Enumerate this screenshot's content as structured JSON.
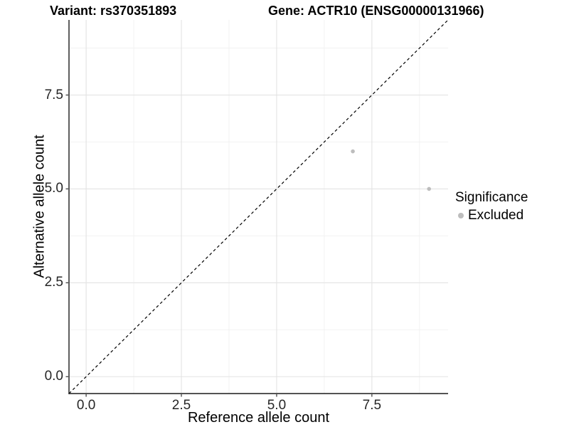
{
  "chart_data": {
    "type": "scatter",
    "title_left": "Variant: rs370351893",
    "title_right": "Gene: ACTR10 (ENSG00000131966)",
    "xlabel": "Reference allele count",
    "ylabel": "Alternative allele count",
    "xlim": [
      -0.45,
      9.5
    ],
    "ylim": [
      -0.45,
      9.5
    ],
    "x_ticks": [
      0,
      2.5,
      5,
      7.5
    ],
    "y_ticks": [
      0,
      2.5,
      5,
      7.5
    ],
    "x_tick_labels": [
      "0.0",
      "2.5",
      "5.0",
      "7.5"
    ],
    "y_tick_labels": [
      "0.0",
      "2.5",
      "5.0",
      "7.5"
    ],
    "grid_major": [
      0,
      2.5,
      5,
      7.5
    ],
    "grid_minor": [
      1.25,
      3.75,
      6.25,
      8.75
    ],
    "identity_line": {
      "style": "dashed",
      "color": "#000000",
      "from": [
        -0.45,
        -0.45
      ],
      "to": [
        9.5,
        9.5
      ]
    },
    "series": [
      {
        "name": "Excluded",
        "color": "#bdbdbd",
        "points": [
          {
            "x": 7,
            "y": 6
          },
          {
            "x": 9,
            "y": 5
          }
        ]
      }
    ],
    "legend": {
      "title": "Significance",
      "position": "right",
      "items": [
        {
          "label": "Excluded",
          "color": "#bdbdbd"
        }
      ]
    },
    "colors": {
      "grid_major": "#e3e3e3",
      "grid_minor": "#f1f1f1",
      "axis_line": "#1a1a1a",
      "tick_mark": "#333333",
      "tick_text": "#262626",
      "point": "#bdbdbd"
    }
  }
}
